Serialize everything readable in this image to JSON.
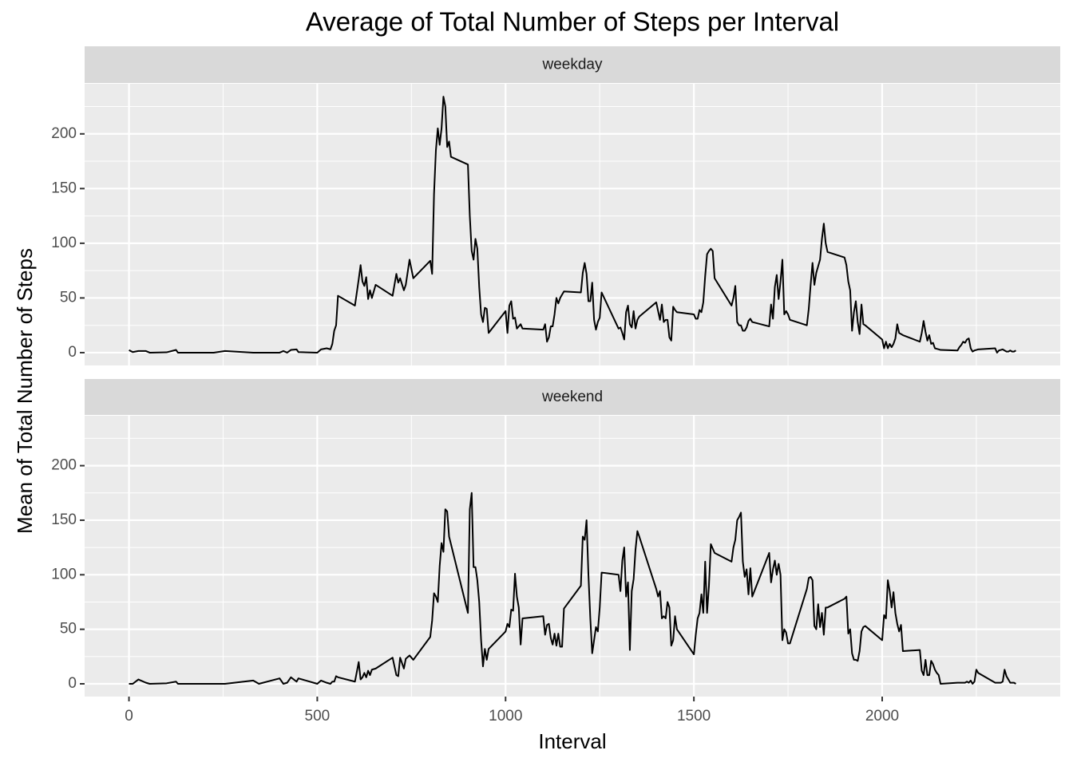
{
  "chart_data": {
    "type": "line",
    "title": "Average of Total Number of Steps per Interval",
    "x_label": "Interval",
    "y_label": "Mean of Total Number of Steps",
    "facet": true,
    "x": [
      0,
      10,
      25,
      45,
      55,
      100,
      125,
      130,
      200,
      225,
      255,
      330,
      345,
      400,
      410,
      420,
      430,
      445,
      450,
      500,
      510,
      525,
      535,
      540,
      545,
      550,
      555,
      600,
      610,
      615,
      620,
      625,
      630,
      635,
      640,
      645,
      655,
      700,
      710,
      715,
      720,
      730,
      735,
      745,
      755,
      800,
      805,
      810,
      815,
      820,
      825,
      830,
      835,
      840,
      845,
      850,
      855,
      900,
      905,
      910,
      915,
      920,
      925,
      930,
      935,
      940,
      945,
      950,
      955,
      1000,
      1005,
      1010,
      1015,
      1020,
      1025,
      1030,
      1035,
      1040,
      1045,
      1100,
      1105,
      1110,
      1115,
      1120,
      1125,
      1130,
      1135,
      1140,
      1145,
      1150,
      1155,
      1200,
      1205,
      1210,
      1215,
      1220,
      1225,
      1230,
      1235,
      1240,
      1245,
      1250,
      1255,
      1300,
      1305,
      1310,
      1315,
      1320,
      1325,
      1330,
      1335,
      1340,
      1345,
      1350,
      1355,
      1400,
      1405,
      1410,
      1415,
      1420,
      1425,
      1430,
      1435,
      1440,
      1445,
      1450,
      1455,
      1500,
      1505,
      1510,
      1515,
      1520,
      1525,
      1530,
      1535,
      1540,
      1545,
      1550,
      1555,
      1600,
      1605,
      1610,
      1615,
      1620,
      1625,
      1630,
      1635,
      1640,
      1645,
      1650,
      1655,
      1700,
      1705,
      1710,
      1715,
      1720,
      1725,
      1730,
      1735,
      1740,
      1745,
      1750,
      1755,
      1800,
      1805,
      1810,
      1815,
      1820,
      1825,
      1830,
      1835,
      1840,
      1845,
      1850,
      1855,
      1900,
      1905,
      1910,
      1915,
      1920,
      1925,
      1930,
      1935,
      1940,
      1945,
      1950,
      1955,
      2000,
      2005,
      2010,
      2015,
      2020,
      2025,
      2030,
      2035,
      2040,
      2045,
      2050,
      2055,
      2100,
      2105,
      2110,
      2115,
      2120,
      2125,
      2130,
      2135,
      2140,
      2145,
      2150,
      2155,
      2200,
      2205,
      2210,
      2215,
      2220,
      2225,
      2230,
      2235,
      2240,
      2245,
      2250,
      2255,
      2300,
      2305,
      2310,
      2315,
      2320,
      2325,
      2330,
      2335,
      2340,
      2345,
      2350,
      2355
    ],
    "series": [
      {
        "name": "weekday",
        "color": "#000000",
        "values": [
          2.3,
          0.5,
          1.5,
          1.5,
          0,
          0.3,
          2.5,
          0,
          0,
          0,
          1.5,
          0,
          0,
          0,
          1.5,
          0,
          2.5,
          3,
          0.5,
          0,
          3,
          4,
          3,
          8,
          20,
          25,
          52,
          43,
          67,
          80,
          65,
          61,
          69,
          49,
          57,
          50,
          62,
          52,
          72,
          64,
          68,
          57,
          62,
          85,
          68,
          84,
          72,
          145,
          185,
          205,
          190,
          205,
          234,
          225,
          188,
          193,
          179,
          172,
          125,
          93,
          85,
          104,
          95,
          60,
          35,
          28,
          41,
          40,
          18,
          38,
          18,
          43,
          47,
          31,
          32,
          22,
          24,
          26,
          22,
          21,
          26,
          10,
          14,
          24,
          24,
          35,
          50,
          45,
          50,
          53,
          56,
          55,
          73,
          82,
          72,
          47,
          47,
          64,
          30,
          21,
          28,
          32,
          55,
          22,
          23,
          18,
          12,
          37,
          43,
          26,
          23,
          38,
          22,
          30,
          33,
          46,
          38,
          30,
          44,
          28,
          30,
          30,
          14,
          11,
          42,
          39,
          37,
          35,
          31,
          31,
          39,
          37,
          46,
          70,
          90,
          93,
          95,
          93,
          68,
          43,
          50,
          61,
          28,
          25,
          25,
          20,
          20,
          23,
          29,
          31,
          28,
          24,
          44,
          31,
          60,
          71,
          49,
          65,
          85,
          35,
          38,
          35,
          30,
          25,
          40,
          62,
          82,
          62,
          73,
          79,
          85,
          104,
          118,
          100,
          92,
          87,
          80,
          65,
          57,
          20,
          37,
          47,
          28,
          17,
          44,
          26,
          25,
          12,
          4,
          10,
          4,
          8,
          5,
          8,
          13,
          26,
          18,
          17,
          16,
          10,
          18,
          29,
          19,
          11,
          16,
          8,
          9,
          4,
          3.5,
          3,
          2.5,
          2,
          5,
          7,
          10,
          9,
          12,
          13,
          4,
          1,
          2,
          2.5,
          3,
          4,
          0,
          2,
          2.5,
          3,
          2,
          1,
          1,
          2,
          1,
          1,
          2
        ]
      },
      {
        "name": "weekend",
        "color": "#000000",
        "values": [
          0,
          0,
          4,
          1,
          0,
          0.5,
          2,
          0,
          0,
          0,
          0,
          3,
          0,
          5,
          0,
          1,
          6,
          2,
          5,
          0,
          3,
          1,
          0,
          2,
          2,
          7,
          6,
          2,
          20,
          4,
          6,
          10,
          6,
          12,
          8,
          13,
          14,
          24,
          8,
          7,
          24,
          14,
          23,
          26,
          22,
          43,
          58,
          83,
          80,
          75,
          108,
          129,
          121,
          160,
          158,
          135,
          128,
          65,
          160,
          175,
          107,
          107,
          95,
          75,
          40,
          16,
          32,
          22,
          32,
          48,
          55,
          52,
          68,
          67,
          101,
          80,
          70,
          36,
          60,
          62,
          45,
          54,
          55,
          42,
          36,
          46,
          35,
          46,
          34,
          34,
          69,
          90,
          135,
          132,
          150,
          100,
          60,
          28,
          40,
          52,
          48,
          70,
          102,
          100,
          85,
          113,
          125,
          80,
          93,
          31,
          85,
          96,
          123,
          140,
          135,
          87,
          80,
          85,
          60,
          62,
          60,
          75,
          70,
          35,
          40,
          62,
          50,
          27,
          45,
          60,
          65,
          82,
          65,
          112,
          65,
          90,
          128,
          124,
          120,
          112,
          125,
          132,
          150,
          153,
          157,
          112,
          98,
          105,
          82,
          106,
          80,
          120,
          93,
          105,
          113,
          100,
          110,
          100,
          40,
          50,
          47,
          37,
          37,
          87,
          97,
          98,
          95,
          53,
          50,
          73,
          52,
          65,
          45,
          70,
          70,
          78,
          80,
          46,
          50,
          28,
          22,
          22,
          21,
          30,
          48,
          52,
          53,
          40,
          63,
          60,
          95,
          85,
          70,
          84,
          65,
          55,
          48,
          54,
          30,
          31,
          12,
          8,
          22,
          8,
          8,
          21,
          18,
          13,
          10,
          8,
          0,
          1,
          1,
          1,
          1,
          1,
          2,
          1,
          3,
          0,
          2,
          13,
          10,
          1,
          1,
          1,
          1,
          2,
          13,
          7,
          4,
          1,
          1,
          1,
          0
        ]
      }
    ],
    "xlim": [
      -117.75,
      2472.75
    ],
    "xticks": [
      0,
      500,
      1000,
      1500,
      2000
    ],
    "ylim": [
      -11.7,
      245.8
    ],
    "yticks": [
      0,
      50,
      100,
      150,
      200
    ],
    "grid": true,
    "minor_grid": true
  }
}
